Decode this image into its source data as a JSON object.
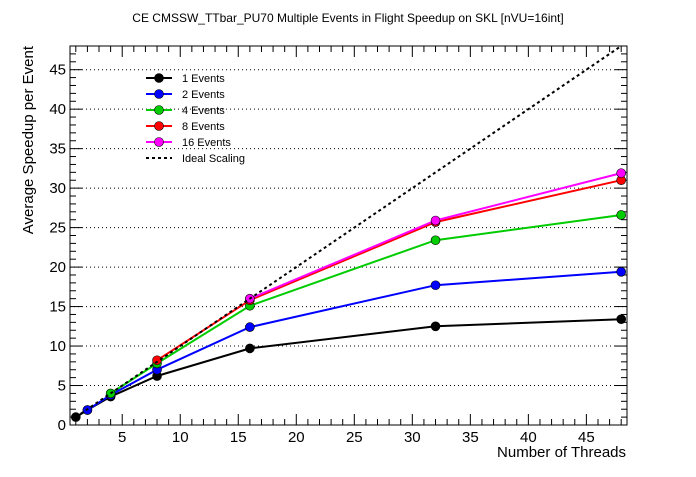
{
  "chart_data": {
    "type": "line",
    "title": "CE CMSSW_TTbar_PU70 Multiple Events in Flight Speedup on SKL [nVU=16int]",
    "xlabel": "Number of Threads",
    "ylabel": "Average Speedup per Event",
    "xlim": [
      0.5,
      48.5
    ],
    "ylim": [
      0,
      48
    ],
    "xticks": [
      5,
      10,
      15,
      20,
      25,
      30,
      35,
      40,
      45
    ],
    "yticks": [
      0,
      5,
      10,
      15,
      20,
      25,
      30,
      35,
      40,
      45
    ],
    "grid": "horizontal dotted",
    "legend_position": "top-left",
    "series": [
      {
        "name": "1 Events",
        "color": "#000000",
        "x": [
          1,
          2,
          4,
          8,
          16,
          32,
          48
        ],
        "values": [
          1.0,
          1.9,
          3.6,
          6.2,
          9.7,
          12.5,
          13.4
        ]
      },
      {
        "name": "2 Events",
        "color": "#0000ff",
        "x": [
          2,
          4,
          8,
          16,
          32,
          48
        ],
        "values": [
          1.9,
          3.8,
          7.0,
          12.4,
          17.7,
          19.4
        ]
      },
      {
        "name": "4 Events",
        "color": "#00cc00",
        "x": [
          4,
          8,
          16,
          32,
          48
        ],
        "values": [
          4.0,
          7.8,
          15.1,
          23.4,
          26.6
        ]
      },
      {
        "name": "8 Events",
        "color": "#ff0000",
        "x": [
          8,
          16,
          32,
          48
        ],
        "values": [
          8.2,
          15.8,
          25.7,
          31.0
        ]
      },
      {
        "name": "16 Events",
        "color": "#ff00ff",
        "x": [
          16,
          32,
          48
        ],
        "values": [
          16.0,
          25.9,
          31.9
        ]
      },
      {
        "name": "Ideal Scaling",
        "color": "#000000",
        "style": "dotted",
        "x": [
          1,
          48
        ],
        "values": [
          1,
          48
        ]
      }
    ]
  }
}
